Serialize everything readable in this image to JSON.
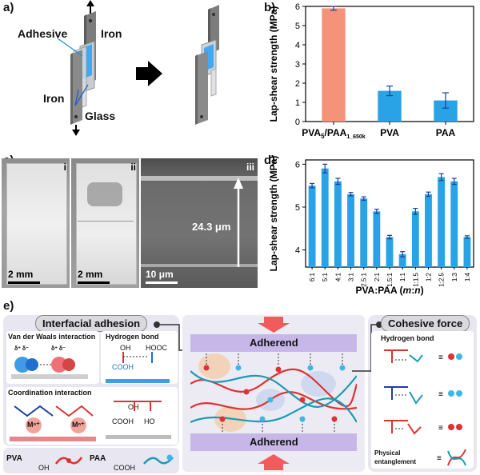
{
  "panels": {
    "a": {
      "label": "a)",
      "adhesive": "Adhesive",
      "iron_top": "Iron",
      "iron_bottom": "Iron",
      "glass": "Glass"
    },
    "b": {
      "label": "b)"
    },
    "c": {
      "label": "c)",
      "images": [
        {
          "roman": "i",
          "scale": "2 mm"
        },
        {
          "roman": "ii",
          "scale": "2 mm"
        },
        {
          "roman": "iii",
          "scale": "10 μm",
          "thickness": "24.3 μm"
        }
      ]
    },
    "d": {
      "label": "d)"
    },
    "e": {
      "label": "e)",
      "interfacial_title": "Interfacial adhesion",
      "cohesive_title": "Cohesive force",
      "vdw": "Van der Waals interaction",
      "hbond_left": "Hydrogen bond",
      "coordination": "Coordination interaction",
      "metal1": "Mⁿ⁺",
      "metal2": "Mⁿ⁺",
      "adherend_top": "Adherend",
      "adherend_bottom": "Adherend",
      "hbond_right": "Hydrogen bond",
      "physical": "Physical",
      "entanglement": "entanglement",
      "pva": "PVA",
      "paa": "PAA",
      "oh_group": "OH",
      "cooh_group": "COOH",
      "h_bond_atoms": [
        "OH",
        "HOOC",
        "COOH",
        "OH",
        "COOH",
        "HO"
      ],
      "delta": "δ⁺ δ⁻"
    }
  },
  "chart_data": [
    {
      "type": "bar",
      "panel": "b",
      "categories": [
        "PVA5/PAA1_650k",
        "PVA",
        "PAA"
      ],
      "category_display": [
        {
          "main": "PVA",
          "sub1": "5",
          "mid": "/PAA",
          "sub2": "1_650k"
        },
        {
          "main": "PVA"
        },
        {
          "main": "PAA"
        }
      ],
      "values": [
        5.9,
        1.6,
        1.1
      ],
      "errors": [
        0.1,
        0.25,
        0.4
      ],
      "colors": [
        "#f4937a",
        "#29a3e6",
        "#29a3e6"
      ],
      "ylabel": "Lap-shear strength (MPa)",
      "ylim": [
        0,
        6
      ],
      "yticks": [
        "0",
        "1",
        "2",
        "3",
        "4",
        "5",
        "6"
      ]
    },
    {
      "type": "bar",
      "panel": "d",
      "categories": [
        "6:1",
        "5:1",
        "4:1",
        "3:1",
        "2.5:1",
        "2:1",
        "1.5:1",
        "1:1",
        "1:1.5",
        "1:2",
        "1:2.5",
        "1:3",
        "1:4"
      ],
      "values": [
        5.5,
        5.9,
        5.6,
        5.3,
        5.2,
        4.9,
        4.3,
        3.9,
        4.9,
        5.3,
        5.7,
        5.6,
        4.3
      ],
      "errors": [
        0.05,
        0.1,
        0.07,
        0.04,
        0.04,
        0.05,
        0.04,
        0.06,
        0.07,
        0.05,
        0.08,
        0.07,
        0.03
      ],
      "color": "#29a3e6",
      "ylabel": "Lap-shear strength (MPa)",
      "xlabel": "PVA:PAA (m:n)",
      "xlabel_main": "PVA:PAA (",
      "xlabel_italic": "m",
      "xlabel_colon": ":",
      "xlabel_italic2": "n",
      "xlabel_end": ")",
      "ylim": [
        3.6,
        6.1
      ],
      "yticks": [
        "4",
        "5",
        "6"
      ]
    }
  ]
}
